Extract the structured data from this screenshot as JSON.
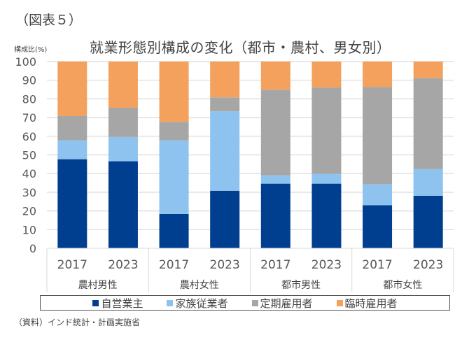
{
  "figure_label": "（図表５）",
  "chart_data": {
    "type": "bar",
    "stacked": true,
    "title": "就業形態別構成の変化（都市・農村、男女別）",
    "ylabel": "構成比(%)",
    "xlabel": "",
    "ylim": [
      0,
      100
    ],
    "yticks": [
      0,
      10,
      20,
      30,
      40,
      50,
      60,
      70,
      80,
      90,
      100
    ],
    "grid": true,
    "legend_position": "bottom",
    "groups": [
      "農村男性",
      "農村女性",
      "都市男性",
      "都市女性"
    ],
    "categories": [
      "2017",
      "2023",
      "2017",
      "2023",
      "2017",
      "2023",
      "2017",
      "2023"
    ],
    "category_groups": [
      0,
      0,
      1,
      1,
      2,
      2,
      3,
      3
    ],
    "series": [
      {
        "name": "自営業主",
        "color": "#003F8F",
        "values": [
          47.7,
          46.6,
          18.4,
          30.8,
          34.6,
          34.6,
          23.1,
          28.1
        ]
      },
      {
        "name": "家族従業者",
        "color": "#8DC3EE",
        "values": [
          10.1,
          13.0,
          39.4,
          42.5,
          4.5,
          5.2,
          11.2,
          14.3
        ]
      },
      {
        "name": "定期雇用者",
        "color": "#A6A6A6",
        "values": [
          13.0,
          15.7,
          9.9,
          7.5,
          45.8,
          46.3,
          52.1,
          48.7
        ]
      },
      {
        "name": "臨時雇用者",
        "color": "#F4A15D",
        "values": [
          29.2,
          24.7,
          32.3,
          19.2,
          15.1,
          13.9,
          13.6,
          8.9
        ]
      }
    ]
  },
  "source": "（資料）インド統計・計画実施省"
}
